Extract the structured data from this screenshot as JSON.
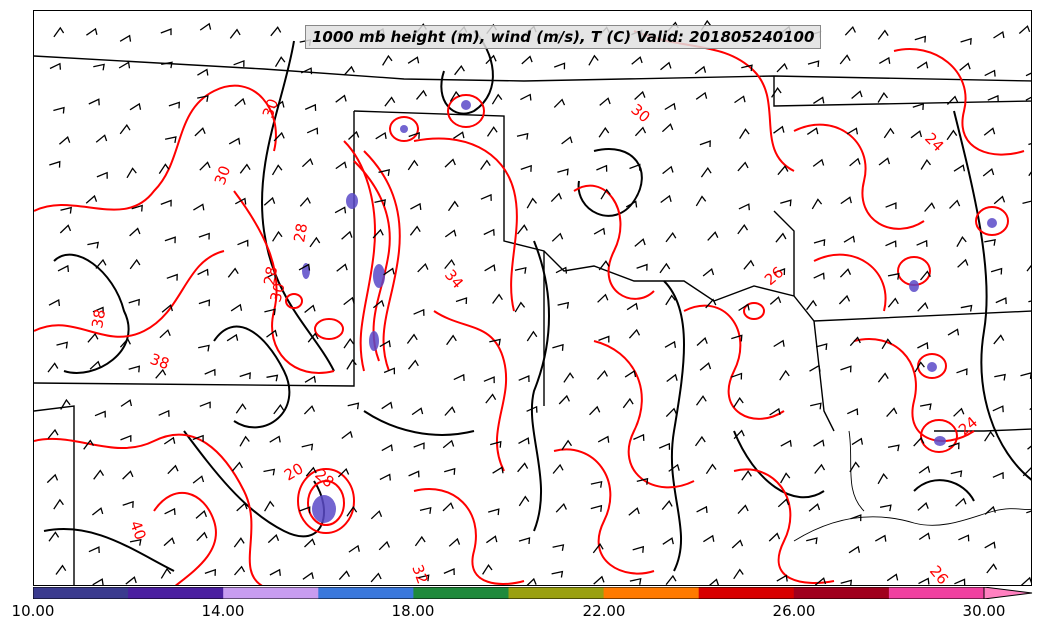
{
  "title": "1000 mb height (m), wind (m/s), T (C) Valid: 201805240100",
  "colorbar": {
    "colors": [
      "#3b3b8f",
      "#4b1fa0",
      "#c89cf0",
      "#3a78dc",
      "#1f8a3c",
      "#9aa010",
      "#ff7a00",
      "#d80000",
      "#a0001e",
      "#f040a0",
      "#ff80c0"
    ],
    "tick_labels": [
      "10.00",
      "14.00",
      "18.00",
      "22.00",
      "26.00",
      "30.00"
    ]
  },
  "contour_labels": [
    "30",
    "38",
    "38",
    "30",
    "28",
    "30",
    "34",
    "30",
    "24",
    "26",
    "24",
    "20",
    "28",
    "40",
    "32",
    "26",
    "28"
  ],
  "colors": {
    "temperature_contour": "#ff0000",
    "height_contour": "#000000",
    "low_height_fill": "#5a4ac8"
  }
}
